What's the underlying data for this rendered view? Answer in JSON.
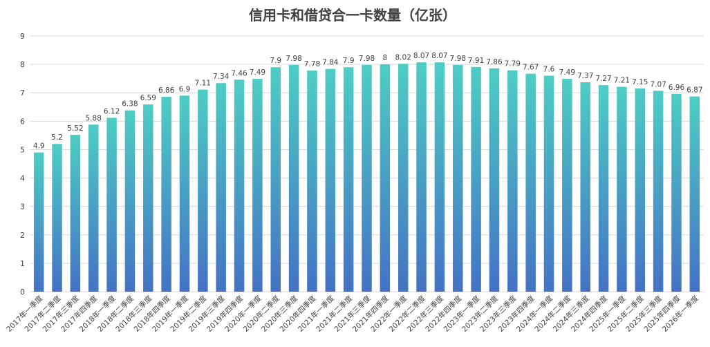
{
  "chart_data": {
    "type": "bar",
    "title": "信用卡和借贷合一卡数量（亿张）",
    "xlabel": "",
    "ylabel": "",
    "ylim": [
      0,
      9
    ],
    "yticks": [
      "0",
      "1",
      "2",
      "3",
      "4",
      "5",
      "6",
      "7",
      "8",
      "9"
    ],
    "grid": true,
    "colors": {
      "bar_top": "#4ecdc4",
      "bar_bottom": "#4472c4"
    },
    "categories": [
      "2017年一季度",
      "2017年二季度",
      "2017年三季度",
      "2017年四季度",
      "2018年一季度",
      "2018年二季度",
      "2018年三季度",
      "2018年四季度",
      "2019年一季度",
      "2019年二季度",
      "2019年三季度",
      "2019年四季度",
      "2020年一季度",
      "2020年二季度",
      "2020年三季度",
      "2020年四季度",
      "2021年一季度",
      "2021年二季度",
      "2021年三季度",
      "2021年四季度",
      "2022年一季度",
      "2022年二季度",
      "2022年三季度",
      "2022年四季度",
      "2023年一季度",
      "2023年二季度",
      "2023年三季度",
      "2023年四季度",
      "2024年一季度",
      "2024年二季度",
      "2024年三季度",
      "2024年四季度",
      "2025年一季度",
      "2025年二季度",
      "2025年三季度",
      "2025年四季度",
      "2026年一季度"
    ],
    "values": [
      4.9,
      5.2,
      5.52,
      5.88,
      6.12,
      6.38,
      6.59,
      6.86,
      6.9,
      7.11,
      7.34,
      7.46,
      7.49,
      7.9,
      7.98,
      7.78,
      7.84,
      7.9,
      7.98,
      8,
      8.02,
      8.07,
      8.07,
      7.98,
      7.91,
      7.86,
      7.79,
      7.67,
      7.6,
      7.49,
      7.37,
      7.27,
      7.21,
      7.15,
      7.07,
      6.96,
      6.87
    ],
    "data_labels": [
      "4.9",
      "5.2",
      "5.52",
      "5.88",
      "6.12",
      "6.38",
      "6.59",
      "6.86",
      "6.9",
      "7.11",
      "7.34",
      "7.46",
      "7.49",
      "7.9",
      "7.98",
      "7.78",
      "7.84",
      "7.9",
      "7.98",
      "8",
      "8.02",
      "8.07",
      "8.07",
      "7.98",
      "7.91",
      "7.86",
      "7.79",
      "7.67",
      "7.6",
      "7.49",
      "7.37",
      "7.27",
      "7.21",
      "7.15",
      "7.07",
      "6.96",
      "6.87"
    ]
  }
}
